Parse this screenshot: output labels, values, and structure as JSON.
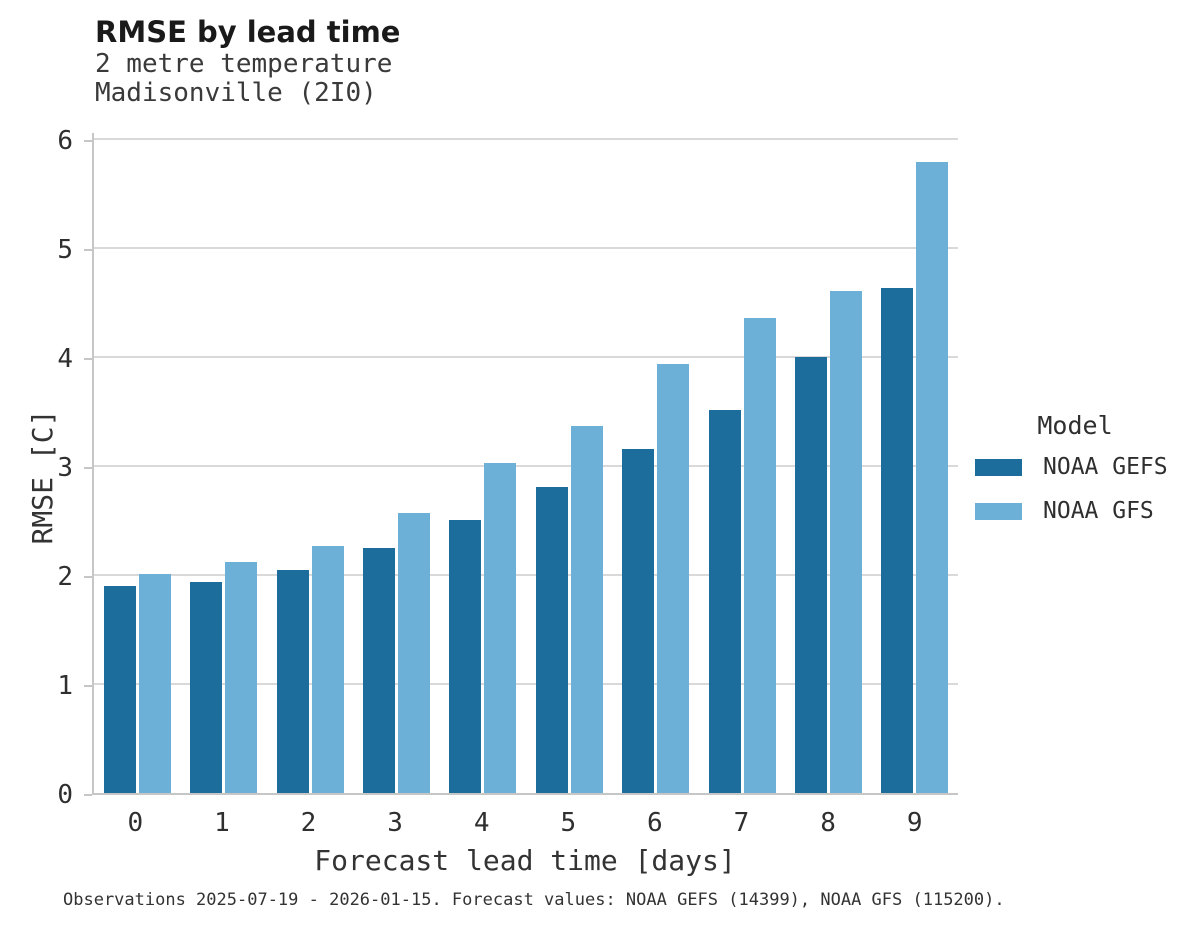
{
  "header": {
    "title": "RMSE by lead time",
    "subtitle_line1": "2 metre temperature",
    "subtitle_line2": "Madisonville (2I0)"
  },
  "chart_data": {
    "type": "bar",
    "title": "RMSE by lead time",
    "subtitle": [
      "2 metre temperature",
      "Madisonville (2I0)"
    ],
    "categories": [
      "0",
      "1",
      "2",
      "3",
      "4",
      "5",
      "6",
      "7",
      "8",
      "9"
    ],
    "series": [
      {
        "name": "NOAA GEFS",
        "color": "#1d6d9c",
        "values": [
          1.9,
          1.94,
          2.05,
          2.25,
          2.5,
          2.81,
          3.16,
          3.51,
          4.0,
          4.63
        ]
      },
      {
        "name": "NOAA GFS",
        "color": "#6cb0d8",
        "values": [
          2.01,
          2.12,
          2.27,
          2.57,
          3.03,
          3.37,
          3.94,
          4.36,
          4.61,
          5.79
        ]
      }
    ],
    "xlabel": "Forecast lead time [days]",
    "ylabel": "RMSE [C]",
    "ylim": [
      0,
      6
    ],
    "yticks": [
      0,
      1,
      2,
      3,
      4,
      5,
      6
    ],
    "grid": "horizontal",
    "legend_position": "right"
  },
  "legend": {
    "title": "Model",
    "entries": [
      {
        "label": "NOAA GEFS",
        "color": "#1d6d9c"
      },
      {
        "label": "NOAA GFS",
        "color": "#6cb0d8"
      }
    ]
  },
  "caption": "Observations 2025-07-19 - 2026-01-15. Forecast values: NOAA GEFS (14399), NOAA GFS (115200).",
  "colors": {
    "gefs": "#1d6d9c",
    "gfs": "#6cb0d8",
    "axis_line": "#c6c6c6",
    "gridline": "#d9d9d9",
    "background": "#ffffff"
  }
}
